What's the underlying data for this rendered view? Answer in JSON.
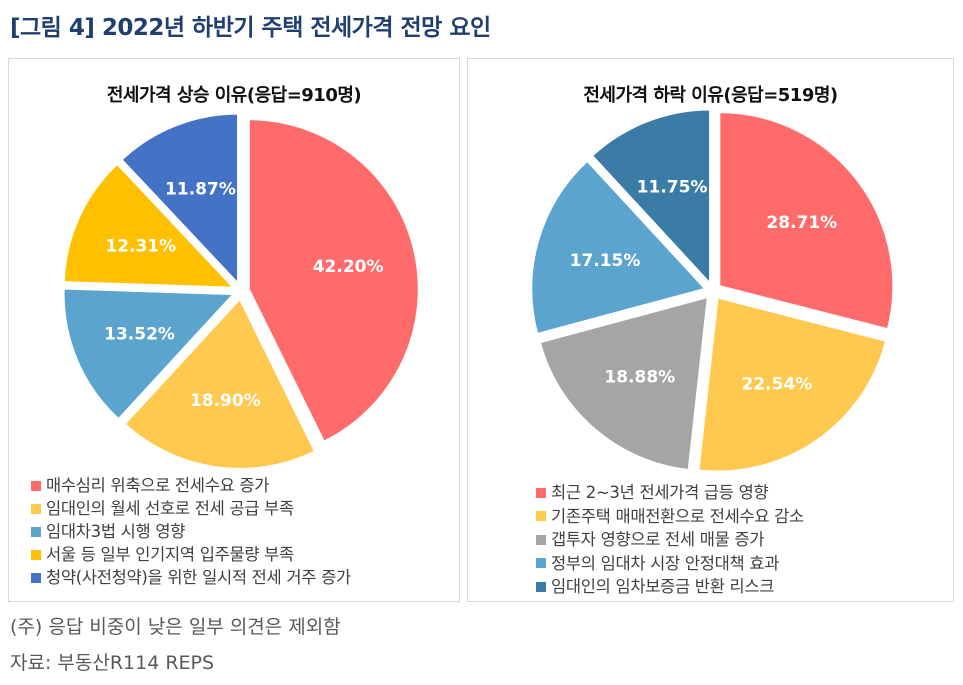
{
  "title": "[그림 4] 2022년 하반기 주택 전세가격 전망 요인",
  "chart_data": [
    {
      "type": "pie",
      "title": "전세가격 상승 이유(응답=910명)",
      "categories": [
        "매수심리 위축으로 전세수요 증가",
        "임대인의 월세 선호로 전세 공급 부족",
        "임대차3법 시행 영향",
        "서울 등 일부 인기지역 입주물량 부족",
        "청약(사전청약)을 위한 일시적 전세 거주 증가"
      ],
      "values": [
        42.2,
        18.9,
        13.52,
        12.31,
        11.87
      ],
      "labels": [
        "42.20%",
        "18.90%",
        "13.52%",
        "12.31%",
        "11.87%"
      ],
      "colors": [
        "#ff6b6b",
        "#ffc84f",
        "#5ba4cd",
        "#ffc000",
        "#4472c4"
      ],
      "legend": "bottom"
    },
    {
      "type": "pie",
      "title": "전세가격 하락 이유(응답=519명)",
      "categories": [
        "최근 2~3년 전세가격 급등 영향",
        "기존주택 매매전환으로 전세수요 감소",
        "갭투자 영향으로 전세 매물 증가",
        "정부의 임대차 시장 안정대책 효과",
        "임대인의 임차보증금 반환 리스크"
      ],
      "values": [
        28.71,
        22.54,
        18.88,
        17.15,
        11.75
      ],
      "labels": [
        "28.71%",
        "22.54%",
        "18.88%",
        "17.15%",
        "11.75%"
      ],
      "colors": [
        "#ff6b6b",
        "#ffc84f",
        "#a5a5a5",
        "#5ba4cd",
        "#3a7ca5"
      ],
      "legend": "bottom"
    }
  ],
  "notes": [
    "(주) 응답 비중이 낮은 일부 의견은 제외함",
    "자료: 부동산R114 REPS"
  ]
}
